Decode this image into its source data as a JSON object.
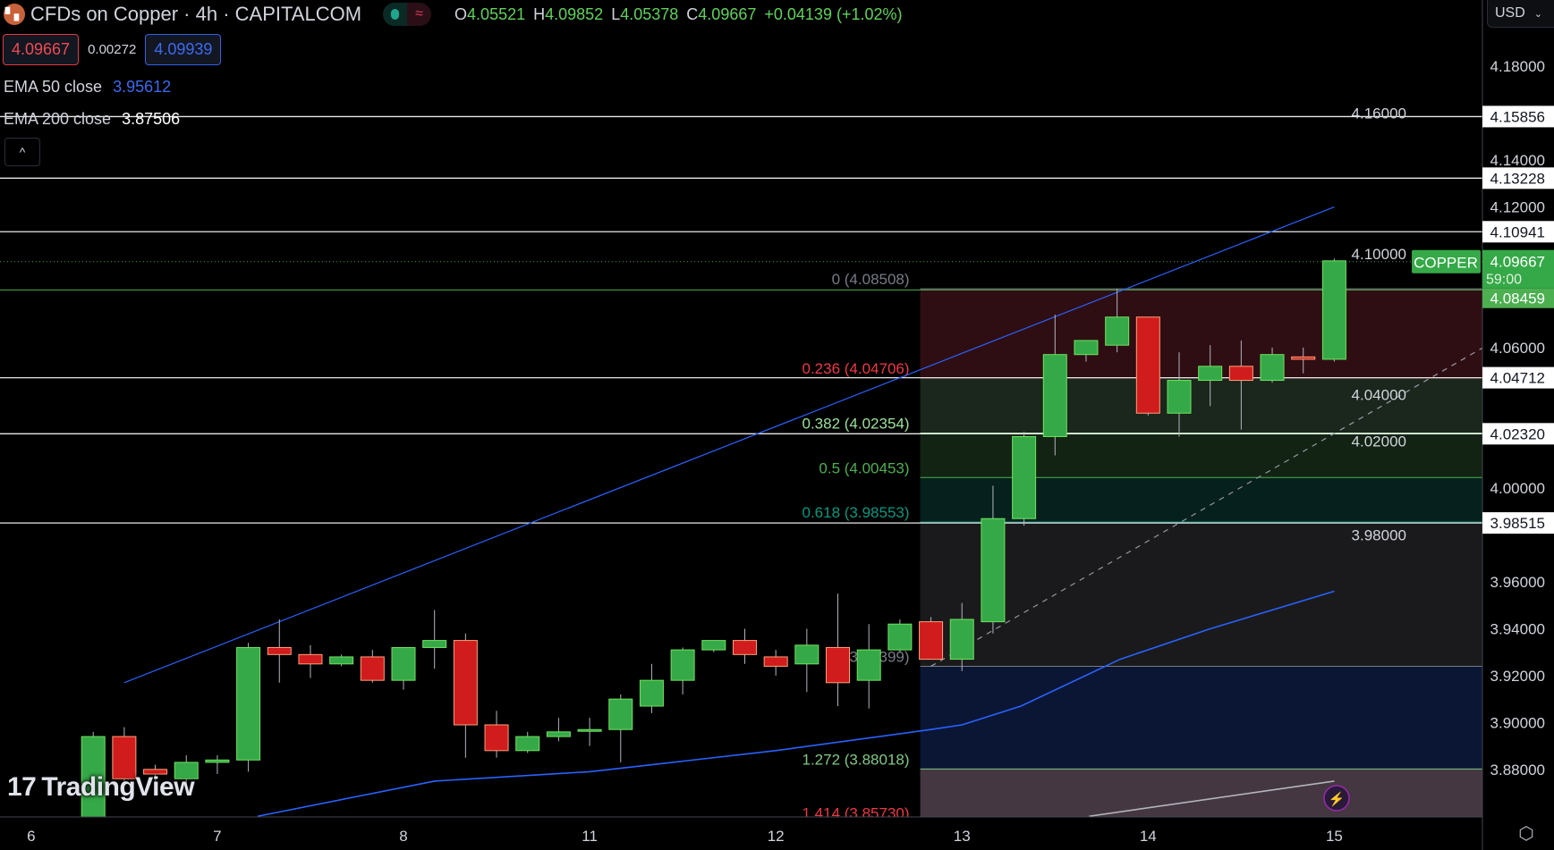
{
  "header": {
    "title": "CFDs on Copper · 4h · CAPITALCOM",
    "logo_icon": "capitalcom-logo-icon",
    "status_icons": [
      "market-open-dot-icon",
      "delayed-data-wave-icon"
    ],
    "ohlc": {
      "o_label": "O",
      "o": "4.05521",
      "h_label": "H",
      "h": "4.09852",
      "l_label": "L",
      "l": "4.05378",
      "c_label": "C",
      "c": "4.09667",
      "change": "+0.04139 (+1.02%)"
    },
    "sell_price": "4.09667",
    "spread": "0.00272",
    "buy_price": "4.09939",
    "ema50": {
      "label": "EMA 50 close",
      "value": "3.95612"
    },
    "ema200": {
      "label": "EMA 200 close",
      "value": "3.87506"
    },
    "collapse_icon": "chevron-up-icon"
  },
  "currency": "USD",
  "watermark": "TradingView",
  "colors": {
    "up": "#35a947",
    "down": "#d01c1c",
    "ema50": "#2962ff",
    "ema200": "#b2b5be",
    "channel": "#2962ff",
    "current": "#35a947"
  },
  "chart_data": {
    "type": "candlestick",
    "interval": "4h",
    "day_labels": [
      {
        "label": "6",
        "slot": -2
      },
      {
        "label": "7",
        "slot": 4
      },
      {
        "label": "8",
        "slot": 10
      },
      {
        "label": "11",
        "slot": 16
      },
      {
        "label": "12",
        "slot": 22
      },
      {
        "label": "13",
        "slot": 28
      },
      {
        "label": "14",
        "slot": 34
      },
      {
        "label": "15",
        "slot": 40
      }
    ],
    "candles": [
      [
        3.858,
        3.896,
        3.855,
        3.894
      ],
      [
        3.894,
        3.898,
        3.873,
        3.876
      ],
      [
        3.88,
        3.882,
        3.874,
        3.878
      ],
      [
        3.876,
        3.886,
        3.872,
        3.883
      ],
      [
        3.883,
        3.886,
        3.878,
        3.884
      ],
      [
        3.884,
        3.934,
        3.879,
        3.932
      ],
      [
        3.932,
        3.944,
        3.917,
        3.929
      ],
      [
        3.929,
        3.933,
        3.919,
        3.925
      ],
      [
        3.925,
        3.929,
        3.924,
        3.928
      ],
      [
        3.928,
        3.931,
        3.917,
        3.918
      ],
      [
        3.918,
        3.932,
        3.914,
        3.932
      ],
      [
        3.932,
        3.948,
        3.923,
        3.935
      ],
      [
        3.935,
        3.938,
        3.885,
        3.899
      ],
      [
        3.899,
        3.905,
        3.885,
        3.888
      ],
      [
        3.888,
        3.896,
        3.887,
        3.894
      ],
      [
        3.894,
        3.902,
        3.892,
        3.896
      ],
      [
        3.897,
        3.902,
        3.89,
        3.897
      ],
      [
        3.897,
        3.912,
        3.883,
        3.91
      ],
      [
        3.907,
        3.925,
        3.904,
        3.918
      ],
      [
        3.918,
        3.932,
        3.912,
        3.931
      ],
      [
        3.931,
        3.935,
        3.93,
        3.935
      ],
      [
        3.935,
        3.94,
        3.925,
        3.929
      ],
      [
        3.928,
        3.931,
        3.92,
        3.924
      ],
      [
        3.925,
        3.94,
        3.913,
        3.933
      ],
      [
        3.932,
        3.955,
        3.907,
        3.917
      ],
      [
        3.918,
        3.942,
        3.906,
        3.931
      ],
      [
        3.931,
        3.944,
        3.93,
        3.942
      ],
      [
        3.943,
        3.945,
        3.927,
        3.927
      ],
      [
        3.927,
        3.951,
        3.922,
        3.944
      ],
      [
        3.943,
        4.001,
        3.938,
        3.987
      ],
      [
        3.987,
        4.024,
        3.984,
        4.022
      ],
      [
        4.022,
        4.074,
        4.014,
        4.057
      ],
      [
        4.057,
        4.063,
        4.054,
        4.063
      ],
      [
        4.061,
        4.085,
        4.058,
        4.073
      ],
      [
        4.073,
        4.073,
        4.031,
        4.032
      ],
      [
        4.032,
        4.058,
        4.022,
        4.046
      ],
      [
        4.046,
        4.061,
        4.035,
        4.052
      ],
      [
        4.052,
        4.063,
        4.025,
        4.046
      ],
      [
        4.046,
        4.06,
        4.045,
        4.057
      ],
      [
        4.056,
        4.06,
        4.049,
        4.055
      ],
      [
        4.055,
        4.098,
        4.054,
        4.097
      ]
    ],
    "ema50": [
      [
        5.3,
        3.86
      ],
      [
        11,
        3.875
      ],
      [
        16,
        3.879
      ],
      [
        22,
        3.888
      ],
      [
        27,
        3.897
      ],
      [
        28,
        3.899
      ],
      [
        29.9,
        3.907
      ],
      [
        33.1,
        3.927
      ],
      [
        36,
        3.94
      ],
      [
        39,
        3.952
      ],
      [
        40,
        3.956
      ]
    ],
    "ema200": [
      [
        32.1,
        3.86
      ],
      [
        40,
        3.875
      ]
    ],
    "channel_upper": [
      [
        1,
        3.917
      ],
      [
        40,
        4.12
      ]
    ],
    "channel_lower_dashed": [
      [
        27,
        3.924
      ],
      [
        44.8,
        4.06
      ]
    ],
    "y_ticks": [
      "4.18000",
      "4.16000",
      "4.14000",
      "4.12000",
      "4.10000",
      "4.06000",
      "4.04000",
      "4.02000",
      "4.00000",
      "3.98000",
      "3.96000",
      "3.94000",
      "3.92000",
      "3.90000",
      "3.88000"
    ],
    "horizontal_levels": [
      "4.15856",
      "4.13228",
      "4.10941",
      "4.04712",
      "4.02320",
      "3.98515"
    ],
    "support_level": "4.08459",
    "current_price": {
      "symbol": "COPPER",
      "price": "4.09667",
      "countdown": "59:00"
    },
    "fib": {
      "start_slot": 27,
      "levels": [
        {
          "ratio": "0",
          "price": "4.08508",
          "color": "#787b86",
          "fill": "#2f0e13"
        },
        {
          "ratio": "0.236",
          "price": "4.04706",
          "color": "#f23645",
          "fill": "#1b261c"
        },
        {
          "ratio": "0.382",
          "price": "4.02354",
          "color": "#9be19b",
          "fill": "#122313"
        },
        {
          "ratio": "0.5",
          "price": "4.00453",
          "color": "#4caf50",
          "fill": "#06201d"
        },
        {
          "ratio": "0.618",
          "price": "3.98553",
          "color": "#089981",
          "fill": "#1a1a1c"
        },
        {
          "ratio": "1",
          "price": "3.92399",
          "color": "#787b86",
          "fill": "#0b1635"
        },
        {
          "ratio": "1.272",
          "price": "3.88018",
          "color": "#81c784",
          "fill": "#443741"
        },
        {
          "ratio": "1.414",
          "price": "3.85730",
          "color": "#f23645",
          "fill": ""
        }
      ]
    }
  }
}
